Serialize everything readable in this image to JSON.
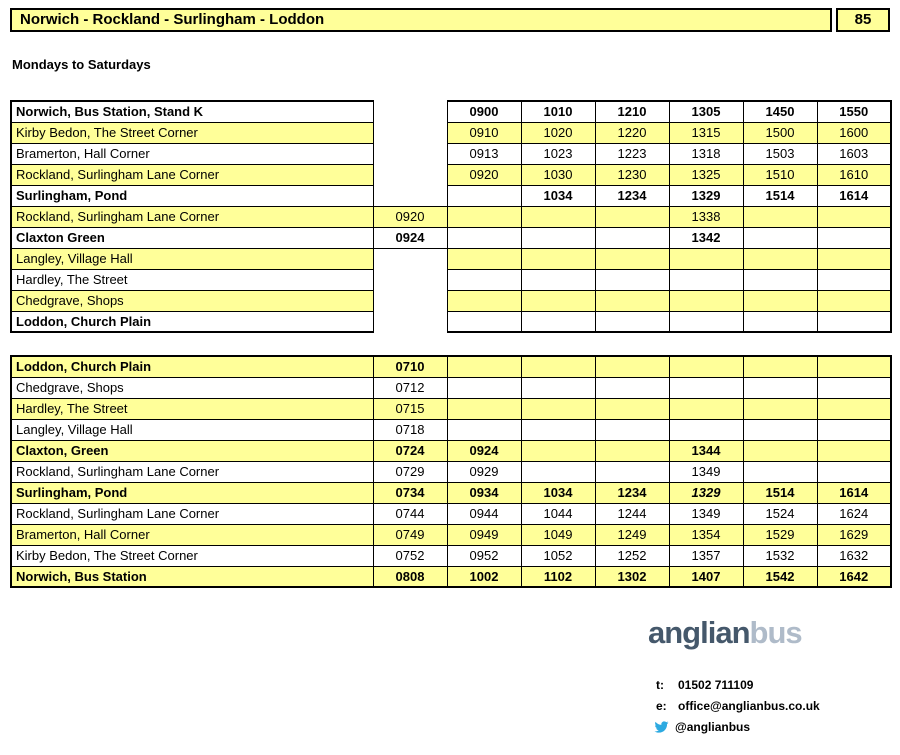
{
  "header": {
    "title": "Norwich - Rockland - Surlingham - Loddon",
    "route_number": "85"
  },
  "days_label": "Mondays to Saturdays",
  "outbound": {
    "rows": [
      {
        "name": "Norwich, Bus Station, Stand K",
        "bold": true,
        "bg": "white",
        "extra": false,
        "times": [
          "",
          "0900",
          "1010",
          "1210",
          "1305",
          "1450",
          "1550"
        ]
      },
      {
        "name": "Kirby Bedon, The Street Corner",
        "bold": false,
        "bg": "yellow",
        "extra": false,
        "times": [
          "",
          "0910",
          "1020",
          "1220",
          "1315",
          "1500",
          "1600"
        ]
      },
      {
        "name": "Bramerton, Hall Corner",
        "bold": false,
        "bg": "white",
        "extra": false,
        "times": [
          "",
          "0913",
          "1023",
          "1223",
          "1318",
          "1503",
          "1603"
        ]
      },
      {
        "name": "Rockland, Surlingham Lane Corner",
        "bold": false,
        "bg": "yellow",
        "extra": false,
        "times": [
          "",
          "0920",
          "1030",
          "1230",
          "1325",
          "1510",
          "1610"
        ]
      },
      {
        "name": "Surlingham, Pond",
        "bold": true,
        "bg": "white",
        "extra": false,
        "times": [
          "",
          "",
          "1034",
          "1234",
          "1329",
          "1514",
          "1614"
        ]
      },
      {
        "name": "Rockland, Surlingham Lane Corner",
        "bold": false,
        "bg": "yellow",
        "extra": true,
        "times": [
          "0920",
          "",
          "",
          "",
          "1338",
          "",
          ""
        ]
      },
      {
        "name": "Claxton Green",
        "bold": true,
        "bg": "white",
        "extra": true,
        "times": [
          "0924",
          "",
          "",
          "",
          "1342",
          "",
          ""
        ]
      },
      {
        "name": "Langley, Village Hall",
        "bold": false,
        "bg": "yellow",
        "extra": false,
        "times": [
          "",
          "",
          "",
          "",
          "",
          "",
          ""
        ]
      },
      {
        "name": "Hardley, The Street",
        "bold": false,
        "bg": "white",
        "extra": false,
        "times": [
          "",
          "",
          "",
          "",
          "",
          "",
          ""
        ]
      },
      {
        "name": "Chedgrave, Shops",
        "bold": false,
        "bg": "yellow",
        "extra": false,
        "times": [
          "",
          "",
          "",
          "",
          "",
          "",
          ""
        ]
      },
      {
        "name": "Loddon, Church Plain",
        "bold": true,
        "bg": "white",
        "extra": false,
        "times": [
          "",
          "",
          "",
          "",
          "",
          "",
          ""
        ]
      }
    ]
  },
  "inbound": {
    "rows": [
      {
        "name": "Loddon, Church Plain",
        "bold": true,
        "bg": "yellow",
        "times": [
          "0710",
          "",
          "",
          "",
          "",
          "",
          ""
        ]
      },
      {
        "name": "Chedgrave, Shops",
        "bold": false,
        "bg": "white",
        "times": [
          "0712",
          "",
          "",
          "",
          "",
          "",
          ""
        ]
      },
      {
        "name": "Hardley, The Street",
        "bold": false,
        "bg": "yellow",
        "times": [
          "0715",
          "",
          "",
          "",
          "",
          "",
          ""
        ]
      },
      {
        "name": "Langley, Village Hall",
        "bold": false,
        "bg": "white",
        "times": [
          "0718",
          "",
          "",
          "",
          "",
          "",
          ""
        ]
      },
      {
        "name": "Claxton, Green",
        "bold": true,
        "bg": "yellow",
        "times": [
          "0724",
          "0924",
          "",
          "",
          "1344",
          "",
          ""
        ]
      },
      {
        "name": "Rockland, Surlingham Lane Corner",
        "bold": false,
        "bg": "white",
        "times": [
          "0729",
          "0929",
          "",
          "",
          "1349",
          "",
          ""
        ]
      },
      {
        "name": "Surlingham, Pond",
        "bold": true,
        "bg": "yellow",
        "times": [
          "0734",
          "0934",
          "1034",
          "1234",
          "1329",
          "1514",
          "1614"
        ],
        "italics": [
          4
        ]
      },
      {
        "name": "Rockland, Surlingham Lane Corner",
        "bold": false,
        "bg": "white",
        "times": [
          "0744",
          "0944",
          "1044",
          "1244",
          "1349",
          "1524",
          "1624"
        ]
      },
      {
        "name": "Bramerton, Hall Corner",
        "bold": false,
        "bg": "yellow",
        "times": [
          "0749",
          "0949",
          "1049",
          "1249",
          "1354",
          "1529",
          "1629"
        ]
      },
      {
        "name": "Kirby Bedon, The Street Corner",
        "bold": false,
        "bg": "white",
        "times": [
          "0752",
          "0952",
          "1052",
          "1252",
          "1357",
          "1532",
          "1632"
        ]
      },
      {
        "name": "Norwich, Bus Station",
        "bold": true,
        "bg": "yellow",
        "times": [
          "0808",
          "1002",
          "1102",
          "1302",
          "1407",
          "1542",
          "1642"
        ]
      }
    ]
  },
  "footer": {
    "logo": {
      "part1": "anglian",
      "part2": "bus"
    },
    "contacts": [
      {
        "label": "t:",
        "value": "01502 711109"
      },
      {
        "label": "e:",
        "value": "office@anglianbus.co.uk"
      },
      {
        "label": "twitter-icon",
        "value": "@anglianbus"
      }
    ]
  },
  "colors": {
    "row_yellow": "#FFFF99",
    "logo_dark": "#45586B",
    "logo_light": "#AFBBC9",
    "twitter_blue": "#2DAAE1",
    "border_black": "#000000"
  }
}
